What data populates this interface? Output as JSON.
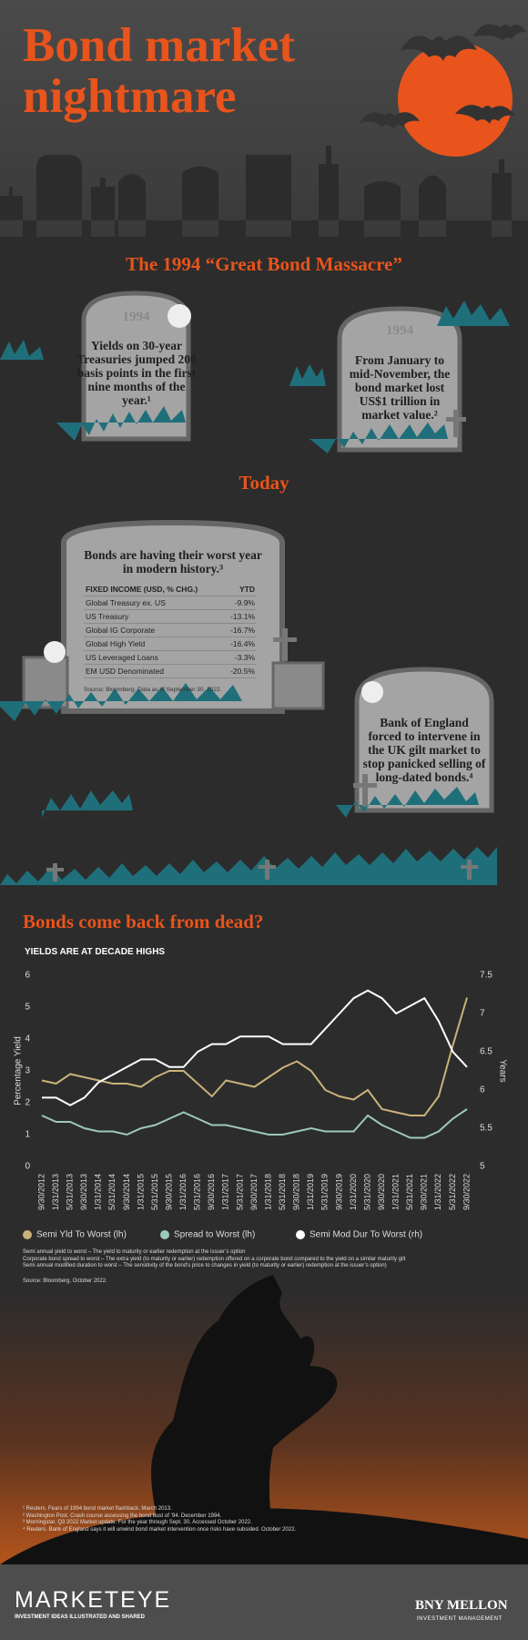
{
  "header": {
    "title": "Bond market nightmare"
  },
  "section_1994": {
    "title": "The 1994 “Great Bond Massacre”",
    "stones": [
      {
        "engraving": "1994",
        "text": "Yields on 30-year Treasuries jumped 200 basis points in the first nine months of the year.¹"
      },
      {
        "engraving": "1994",
        "text": "From January to mid-November, the bond market lost US$1 trillion in market value.²"
      }
    ]
  },
  "section_today": {
    "title": "Today",
    "table_stone": {
      "heading": "Bonds are having their worst year in modern history.³",
      "columns": [
        "FIXED INCOME (USD, % CHG.)",
        "YTD"
      ],
      "rows": [
        [
          "Global Treasury ex. US",
          "-9.9%"
        ],
        [
          "US Treasury",
          "-13.1%"
        ],
        [
          "Global IG Corporate",
          "-16.7%"
        ],
        [
          "Global High Yield",
          "-16.4%"
        ],
        [
          "US Leveraged Loans",
          "-3.3%"
        ],
        [
          "EM USD Denominated",
          "-20.5%"
        ]
      ],
      "source": "Source: Bloomberg. Data as of September 30, 2022."
    },
    "stone": {
      "text": "Bank of England forced to intervene in the UK gilt market to stop panicked selling of long-dated bonds.⁴"
    }
  },
  "chart_section": {
    "title": "Bonds come back from dead?"
  },
  "chart_data": {
    "type": "line",
    "subtitle": "YIELDS ARE AT DECADE HIGHS",
    "y_label": "Percentage Yield",
    "y2_label": "Years",
    "categories": [
      "9/30/2012",
      "1/31/2013",
      "5/31/2013",
      "9/30/2013",
      "1/31/2014",
      "5/31/2014",
      "9/30/2014",
      "1/31/2015",
      "5/31/2015",
      "9/30/2015",
      "1/31/2016",
      "5/31/2016",
      "9/30/2016",
      "1/31/2017",
      "5/31/2017",
      "9/30/2017",
      "1/31/2018",
      "5/31/2018",
      "9/30/2018",
      "1/31/2019",
      "5/31/2019",
      "9/30/2019",
      "1/31/2020",
      "5/31/2020",
      "9/30/2020",
      "1/31/2021",
      "5/31/2021",
      "9/30/2021",
      "1/31/2022",
      "5/31/2022",
      "9/30/2022"
    ],
    "ylim": [
      0,
      6
    ],
    "yticks": [
      0,
      1,
      2,
      3,
      4,
      5,
      6
    ],
    "y2lim": [
      5,
      7.5
    ],
    "y2ticks": [
      5,
      5.5,
      6,
      6.5,
      7,
      7.5
    ],
    "series": [
      {
        "name": "Semi Yld To Worst (lh)",
        "color": "#c9b27a",
        "values": [
          2.7,
          2.6,
          2.9,
          2.8,
          2.7,
          2.6,
          2.6,
          2.5,
          2.8,
          3.0,
          3.0,
          2.6,
          2.2,
          2.7,
          2.6,
          2.5,
          2.8,
          3.1,
          3.3,
          3.0,
          2.4,
          2.2,
          2.1,
          2.4,
          1.8,
          1.7,
          1.6,
          1.6,
          2.2,
          3.8,
          5.3
        ]
      },
      {
        "name": "Spread to Worst (lh)",
        "color": "#9ccab8",
        "values": [
          1.6,
          1.4,
          1.4,
          1.2,
          1.1,
          1.1,
          1.0,
          1.2,
          1.3,
          1.5,
          1.7,
          1.5,
          1.3,
          1.3,
          1.2,
          1.1,
          1.0,
          1.0,
          1.1,
          1.2,
          1.1,
          1.1,
          1.1,
          1.6,
          1.3,
          1.1,
          0.9,
          0.9,
          1.1,
          1.5,
          1.8
        ]
      },
      {
        "name": "Semi Mod Dur To Worst (rh)",
        "color": "#ffffff",
        "axis": "y2",
        "values": [
          5.9,
          5.9,
          5.8,
          5.9,
          6.1,
          6.2,
          6.3,
          6.4,
          6.4,
          6.3,
          6.3,
          6.5,
          6.6,
          6.6,
          6.7,
          6.7,
          6.7,
          6.6,
          6.6,
          6.6,
          6.8,
          7.0,
          7.2,
          7.3,
          7.2,
          7.0,
          7.1,
          7.2,
          6.9,
          6.5,
          6.3
        ]
      }
    ],
    "notes": [
      "Semi annual yield to worst – The yield to maturity or earlier redemption at the issuer’s option",
      "Corporate bond spread to worst – The extra yield (to maturity or earlier) redemption offered on a corporate bond compared to the yield on a similar maturity gilt",
      "Semi annual modified duration to worst – The sensitivity of the bond’s price to changes in yield (to maturity or earlier) redemption at the issuer’s option)"
    ],
    "source": "Source: Bloomberg, October 2022."
  },
  "footnotes": [
    "¹ Reuters. Fears of 1994 bond market flashback. March 2013.",
    "² Washington Post. Crash course assessing the bond bust of ’94. December 1994.",
    "³ Morningstar. Q3 2022 Market update. For the year through Sept. 30. Accessed October 2022.",
    "⁴ Reuters. Bank of England says it will unwind bond market intervention once risks have subsided. October 2022."
  ],
  "footer": {
    "brand": "MARKETEYE",
    "tagline": "INVESTMENT IDEAS ILLUSTRATED AND SHARED",
    "company": "BNY MELLON",
    "division": "INVESTMENT MANAGEMENT"
  }
}
